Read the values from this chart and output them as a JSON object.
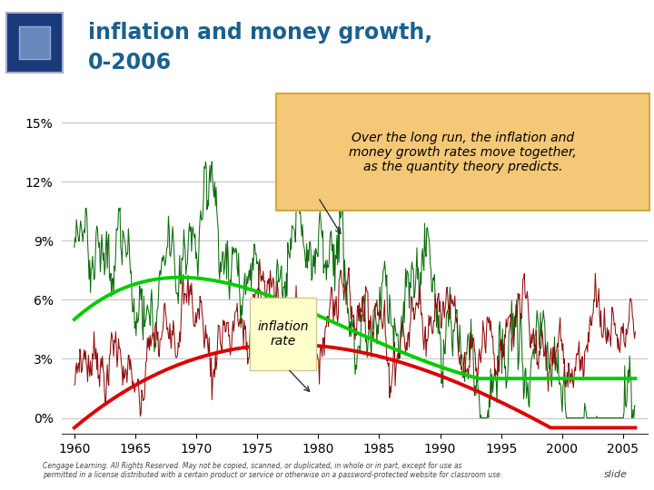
{
  "title_line1": "inflation and money growth,",
  "title_line2": "0-2006",
  "background_color": "#ffffff",
  "left_bg_color": "#b8d4b8",
  "title_color": "#1a6090",
  "yticks": [
    0,
    3,
    6,
    9,
    12,
    15
  ],
  "ytick_labels": [
    "0%",
    "3%",
    "6%",
    "9%",
    "12%",
    "15%"
  ],
  "xticks": [
    1960,
    1965,
    1970,
    1975,
    1980,
    1985,
    1990,
    1995,
    2000,
    2005
  ],
  "xlim": [
    1959.0,
    2007.0
  ],
  "ylim": [
    -0.8,
    16.5
  ],
  "inflation_color": "#8B0000",
  "money_color": "#006400",
  "smooth_inflation_color": "#dd0000",
  "smooth_money_color": "#00cc00",
  "annotation_box_facecolor": "#f5c878",
  "annotation_box_edgecolor": "#d4a840",
  "annotation_text": "Over the long run, the inflation and\nmoney growth rates move together,\nas the quantity theory predicts.",
  "inflation_label": "inflation\nrate",
  "inflation_label_box_color": "#ffffcc",
  "footer_text": "Cengage Learning. All Rights Reserved. May not be copied, scanned, or duplicated, in whole or in part, except for use as\npermitted in a license distributed with a certain product or service or otherwise on a password-protected website for classroom use.",
  "slide_text": "slide"
}
